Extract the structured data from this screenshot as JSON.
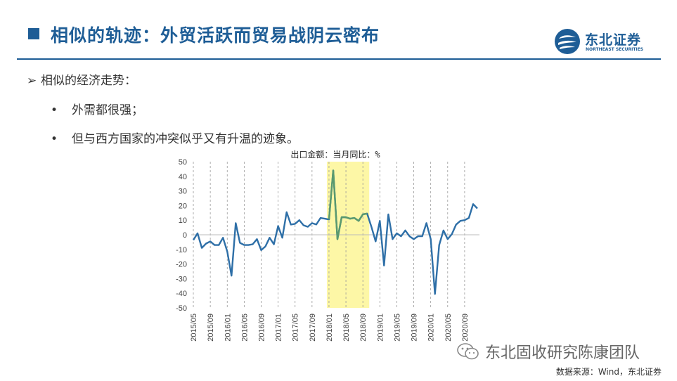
{
  "header": {
    "title": "相似的轨迹：外贸活跃而贸易战阴云密布",
    "logo_cn": "东北证券",
    "logo_en": "NORTHEAST SECURITIES"
  },
  "bullets": {
    "main": "相似的经济走势：",
    "sub": [
      "外需都很强；",
      "但与西方国家的冲突似乎又有升温的迹象。"
    ]
  },
  "footer": {
    "watermark": "东北固收研究陈康团队",
    "source": "数据来源：Wind，东北证券"
  },
  "colors": {
    "brand": "#1e5d96",
    "line": "#2e6fa7",
    "highlight_fill": "#fdf7a6",
    "highlight_line": "#5a9a6e"
  },
  "chart_data": {
    "type": "line",
    "title": "出口金额：当月同比：%",
    "ylim": [
      -50,
      50
    ],
    "yticks": [
      50,
      40,
      30,
      20,
      10,
      0,
      -10,
      -20,
      -30,
      -40,
      -50
    ],
    "xticks": [
      "2015/05",
      "2015/09",
      "2016/01",
      "2016/05",
      "2016/09",
      "2017/01",
      "2017/05",
      "2017/09",
      "2018/01",
      "2018/05",
      "2018/09",
      "2019/01",
      "2019/05",
      "2019/09",
      "2020/01",
      "2020/05",
      "2020/09"
    ],
    "highlight": [
      "2018/01",
      "2018/10"
    ],
    "series": [
      {
        "values": [
          -3.6,
          1.0,
          -9.0,
          -6.0,
          -4.5,
          -7.0,
          -7.0,
          -2.0,
          -11.5,
          -28.0,
          8.0,
          -5.5,
          -7.0,
          -7.0,
          -6.5,
          -3.0,
          -10.5,
          -8.0,
          -2.0,
          -6.5,
          6.0,
          -2.0,
          15.5,
          7.0,
          7.5,
          10.0,
          6.5,
          5.5,
          8.0,
          7.0,
          11.5,
          11.0,
          10.5,
          44.0,
          -3.0,
          12.0,
          12.0,
          11.0,
          11.5,
          9.5,
          14.0,
          14.5,
          5.5,
          -4.5,
          9.5,
          -21.0,
          14.0,
          -3.0,
          1.0,
          -1.0,
          3.0,
          -1.0,
          -3.0,
          -1.0,
          -1.0,
          8.0,
          -3.0,
          -40.5,
          -7.0,
          3.0,
          -3.0,
          0.5,
          7.0,
          9.5,
          10.0,
          11.5,
          21.0,
          18.0
        ]
      }
    ]
  }
}
